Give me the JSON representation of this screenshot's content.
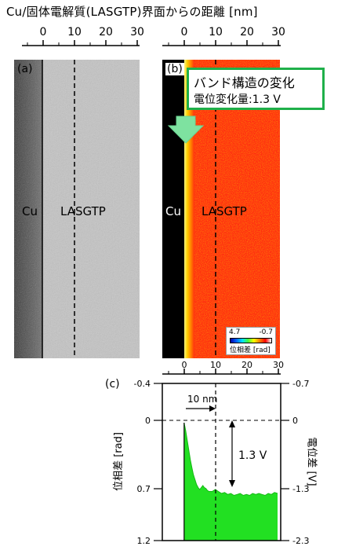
{
  "figure": {
    "title": "Cu/固体電解質(LASGTP)界面からの距離 [nm]",
    "top_axis_ticks": [
      "0",
      "10",
      "20",
      "30"
    ],
    "panel_a": {
      "label": "(a)",
      "left_material": "Cu",
      "right_material": "LASGTP"
    },
    "panel_b": {
      "label": "(b)",
      "left_material": "Cu",
      "right_material": "LASGTP",
      "callout": {
        "title": "バンド構造の変化",
        "subtitle": "電位変化量:1.3 V"
      },
      "colorbar": {
        "min_label": "4.7",
        "max_label": "-0.7",
        "label": "位相差 [rad]"
      },
      "arrow_color": "#7ee2a0"
    },
    "panel_c": {
      "label": "(c)",
      "fill_color": "#22e022"
    },
    "colors": {
      "callout_border": "#1fb04a",
      "profile_fill": "#22e022",
      "phase_map_bg": "#ff2a10"
    }
  },
  "chart_data": {
    "type": "area",
    "x_ticks": [
      "0",
      "10",
      "20",
      "30"
    ],
    "xlim": [
      -7,
      31
    ],
    "left_ylabel": "位相差 [rad]",
    "left_y_ticks": [
      "-0.4",
      "0",
      "0.7",
      "1.2"
    ],
    "left_ylim": [
      -0.4,
      1.2
    ],
    "right_ylabel": "電位差 [V]",
    "right_y_ticks": [
      "-0.7",
      "0",
      "-1.3",
      "-2.3"
    ],
    "annotation_width": "10 nm",
    "annotation_step": "1.3 V",
    "x": [
      0,
      0.5,
      1,
      1.5,
      2,
      2.5,
      3,
      3.5,
      4,
      4.5,
      5,
      5.5,
      6,
      6.5,
      7,
      7.5,
      8,
      9,
      10,
      11,
      12,
      13,
      14,
      15,
      16,
      17,
      18,
      19,
      20,
      21,
      22,
      23,
      24,
      25,
      26,
      27,
      28,
      29,
      30
    ],
    "y": [
      0.0,
      0.08,
      0.18,
      0.28,
      0.38,
      0.46,
      0.53,
      0.58,
      0.63,
      0.66,
      0.68,
      0.66,
      0.64,
      0.66,
      0.67,
      0.69,
      0.7,
      0.7,
      0.68,
      0.7,
      0.72,
      0.71,
      0.73,
      0.72,
      0.74,
      0.73,
      0.72,
      0.74,
      0.73,
      0.74,
      0.72,
      0.73,
      0.72,
      0.73,
      0.74,
      0.72,
      0.73,
      0.71,
      0.72
    ]
  }
}
